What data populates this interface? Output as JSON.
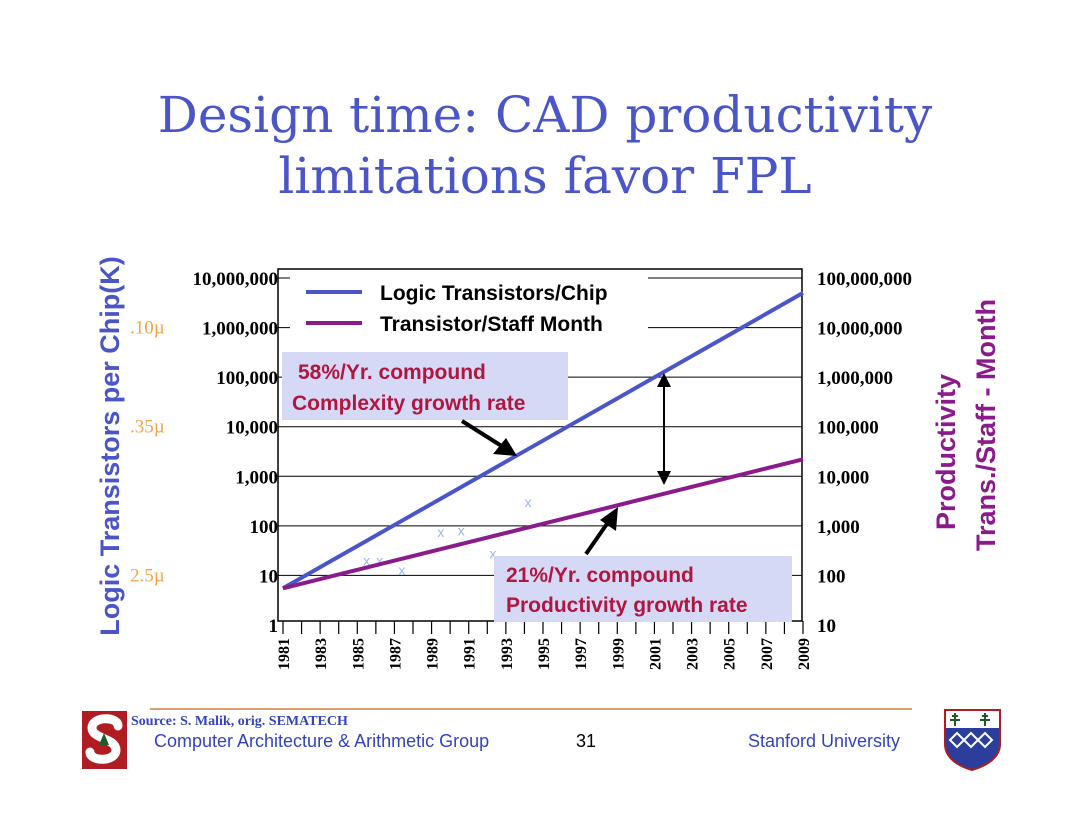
{
  "slide": {
    "title_line1": "Design time: CAD productivity",
    "title_line2": "limitations favor FPL",
    "source": "Source:  S. Malik, orig. SEMATECH",
    "footer_left": "Computer Architecture & Arithmetic Group",
    "page_number": "31",
    "footer_right": "Stanford University",
    "logo_left": "stanford-s-logo",
    "logo_right": "shield-crest-logo"
  },
  "colors": {
    "title": "#4a55c8",
    "logic_series": "#4a55c8",
    "productivity_series": "#8b1a8b",
    "annotation_text": "#b0163f",
    "annotation_box": "#d6d9f5",
    "process_labels": "#f2a447",
    "footer": "#3344bb",
    "footer_rule": "#c8833a"
  },
  "chart_data": {
    "type": "line",
    "x": [
      1981,
      2009
    ],
    "x_ticks": [
      "1981",
      "1983",
      "1985",
      "1987",
      "1989",
      "1991",
      "1993",
      "1995",
      "1997",
      "1999",
      "2001",
      "2003",
      "2005",
      "2007",
      "2009"
    ],
    "xlim": [
      1981,
      2009
    ],
    "y_scale_left": "log",
    "ylim_left": [
      1,
      10000000
    ],
    "ylabel_left": "Logic Transistors per Chip(K)",
    "y_ticks_left": [
      "1",
      "10",
      "100",
      "1,000",
      "10,000",
      "100,000",
      "1,000,000",
      "10,000,000"
    ],
    "y_scale_right": "log",
    "ylim_right": [
      10,
      100000000
    ],
    "ylabel_right_line1": "Productivity",
    "ylabel_right_line2": "Trans./Staff - Month",
    "y_ticks_right": [
      "10",
      "100",
      "1,000",
      "10,000",
      "100,000",
      "1,000,000",
      "10,000,000",
      "100,000,000"
    ],
    "grid": "horizontal",
    "legend": "top-left",
    "series": [
      {
        "name": "Logic Transistors/Chip",
        "axis": "left",
        "x": [
          1981,
          2009
        ],
        "values": [
          5.5,
          5000000
        ]
      },
      {
        "name": "Transistor/Staff Month",
        "axis": "right",
        "x": [
          1981,
          2009
        ],
        "values": [
          55,
          22000
        ]
      }
    ],
    "scatter_marks": [
      {
        "label": "x",
        "x": 1985.5,
        "y": 20
      },
      {
        "label": "x",
        "x": 1986.2,
        "y": 20
      },
      {
        "label": "x",
        "x": 1987.4,
        "y": 13
      },
      {
        "label": "x",
        "x": 1989.5,
        "y": 75
      },
      {
        "label": "x",
        "x": 1990.6,
        "y": 80
      },
      {
        "label": "x",
        "x": 1992.3,
        "y": 28
      },
      {
        "label": "x",
        "x": 1994.2,
        "y": 300
      }
    ],
    "process_nodes": [
      {
        "label": ".10µ",
        "at_left_value": 1000000
      },
      {
        "label": ".35µ",
        "at_left_value": 10000
      },
      {
        "label": "2.5µ",
        "at_left_value": 10
      }
    ],
    "annotations": [
      {
        "line1": "58%/Yr. compound",
        "line2": "Complexity growth rate"
      },
      {
        "line1": "21%/Yr. compound",
        "line2": "Productivity growth rate"
      }
    ]
  }
}
